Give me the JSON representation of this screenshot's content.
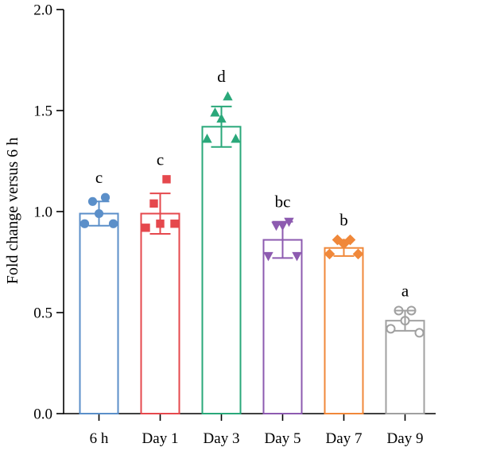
{
  "chart_data": {
    "type": "bar",
    "title": "",
    "xlabel": "",
    "ylabel": "Fold change versus 6 h",
    "ylim": [
      0,
      2.0
    ],
    "yticks": [
      {
        "value": 0.0,
        "label": "0.0"
      },
      {
        "value": 0.5,
        "label": "0.5"
      },
      {
        "value": 1.0,
        "label": "1.0"
      },
      {
        "value": 1.5,
        "label": "1.5"
      },
      {
        "value": 2.0,
        "label": "2.0"
      }
    ],
    "grid": false,
    "categories": [
      "6 h",
      "Day 1",
      "Day 3",
      "Day 5",
      "Day 7",
      "Day 9"
    ],
    "values": [
      0.99,
      0.99,
      1.42,
      0.86,
      0.82,
      0.46
    ],
    "error": [
      0.06,
      0.1,
      0.1,
      0.09,
      0.04,
      0.05
    ],
    "significance": [
      "c",
      "c",
      "d",
      "bc",
      "b",
      "a"
    ],
    "colors": [
      "#5b8fc9",
      "#e5484d",
      "#2aa87a",
      "#8d5bb0",
      "#f0883a",
      "#a0a0a0"
    ],
    "markers": [
      "circle",
      "square",
      "triangle-up",
      "triangle-down",
      "diamond",
      "circle-open"
    ],
    "points": [
      [
        1.07,
        1.05,
        0.99,
        0.94,
        0.94
      ],
      [
        1.16,
        1.04,
        0.94,
        0.92,
        0.94
      ],
      [
        1.57,
        1.49,
        1.46,
        1.36,
        1.36
      ],
      [
        0.95,
        0.93,
        0.93,
        0.78,
        0.78
      ],
      [
        0.86,
        0.86,
        0.84,
        0.79,
        0.79
      ],
      [
        0.51,
        0.51,
        0.46,
        0.42,
        0.4
      ]
    ]
  }
}
